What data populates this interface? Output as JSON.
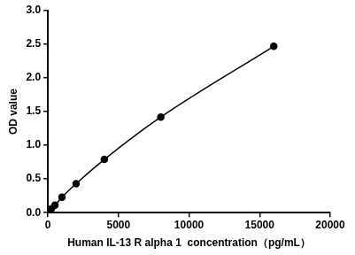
{
  "chart_data": {
    "type": "scatter",
    "x_label": "Human IL-13 R alpha 1  concentration（pg/mL）",
    "y_label": "OD value",
    "x": [
      0,
      250,
      500,
      1000,
      2000,
      4000,
      8000,
      16000
    ],
    "values": [
      0.02,
      0.06,
      0.11,
      0.23,
      0.43,
      0.79,
      1.42,
      2.47
    ],
    "color": "#000000",
    "marker": "circle",
    "line_style": "solid",
    "xlim": [
      0,
      20000
    ],
    "xticks": [
      0,
      5000,
      10000,
      15000,
      20000
    ],
    "ylim": [
      0,
      3.0
    ],
    "yticks": [
      {
        "value": 0,
        "label": "0.0"
      },
      0.5,
      {
        "value": 1,
        "label": "1.0"
      },
      1.5,
      {
        "value": 2,
        "label": "2.0"
      },
      2.5,
      {
        "value": 3,
        "label": "3.0"
      }
    ],
    "grid": false
  }
}
